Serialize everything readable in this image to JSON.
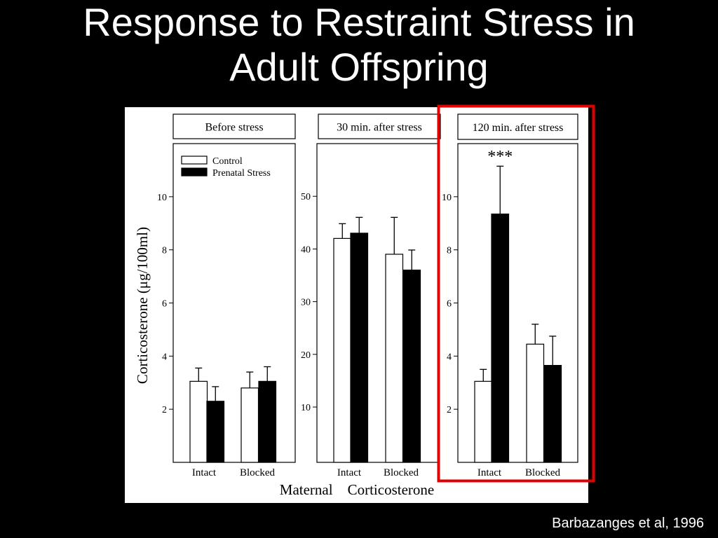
{
  "slide": {
    "title_line1": "Response to Restraint Stress in",
    "title_line2": "Adult Offspring",
    "citation": "Barbazanges et al, 1996"
  },
  "figure": {
    "y_axis_label": "Corticosterone (μg/100ml)",
    "x_axis_label": "Maternal    Corticosterone",
    "highlight_color": "#e00000"
  },
  "chart_data": [
    {
      "type": "bar",
      "title": "Before stress",
      "categories": [
        "Intact",
        "Blocked"
      ],
      "series": [
        {
          "name": "Control",
          "values": [
            3.05,
            2.8
          ],
          "errors": [
            0.5,
            0.6
          ],
          "fill": "#ffffff"
        },
        {
          "name": "Prenatal Stress",
          "values": [
            2.3,
            3.05
          ],
          "errors": [
            0.55,
            0.55
          ],
          "fill": "#000000"
        }
      ],
      "yticks": [
        2,
        4,
        6,
        8,
        10
      ],
      "ylim": [
        0,
        12
      ],
      "legend": "top-left",
      "annotations": []
    },
    {
      "type": "bar",
      "title": "30 min. after stress",
      "categories": [
        "Intact",
        "Blocked"
      ],
      "series": [
        {
          "name": "Control",
          "values": [
            42,
            39
          ],
          "errors": [
            2.8,
            7
          ],
          "fill": "#ffffff"
        },
        {
          "name": "Prenatal Stress",
          "values": [
            43,
            36
          ],
          "errors": [
            3,
            3.8
          ],
          "fill": "#000000"
        }
      ],
      "yticks": [
        10,
        20,
        30,
        40,
        50
      ],
      "ylim": [
        -0.5,
        60
      ],
      "annotations": []
    },
    {
      "type": "bar",
      "title": "120 min. after stress",
      "categories": [
        "Intact",
        "Blocked"
      ],
      "series": [
        {
          "name": "Control",
          "values": [
            3.05,
            4.45
          ],
          "errors": [
            0.45,
            0.75
          ],
          "fill": "#ffffff"
        },
        {
          "name": "Prenatal Stress",
          "values": [
            9.35,
            3.65
          ],
          "errors": [
            1.8,
            1.1
          ],
          "fill": "#000000"
        }
      ],
      "yticks": [
        2,
        4,
        6,
        8,
        10
      ],
      "ylim": [
        0,
        12
      ],
      "highlighted": true,
      "annotations": [
        {
          "text": "***",
          "series": "Prenatal Stress",
          "category": "Intact"
        }
      ]
    }
  ]
}
